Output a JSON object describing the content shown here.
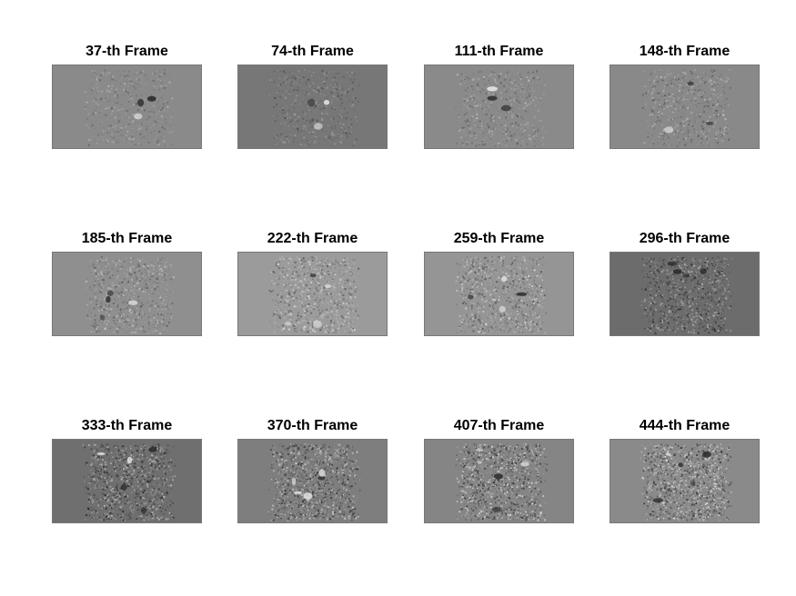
{
  "figure": {
    "panels": [
      {
        "title": "37-th Frame",
        "background": "#8a8a8a",
        "activity": 0.25
      },
      {
        "title": "74-th Frame",
        "background": "#777777",
        "activity": 0.3
      },
      {
        "title": "111-th Frame",
        "background": "#8a8a8a",
        "activity": 0.35
      },
      {
        "title": "148-th Frame",
        "background": "#898989",
        "activity": 0.4
      },
      {
        "title": "185-th Frame",
        "background": "#8f8f8f",
        "activity": 0.5
      },
      {
        "title": "222-th Frame",
        "background": "#9b9b9b",
        "activity": 0.6
      },
      {
        "title": "259-th Frame",
        "background": "#959595",
        "activity": 0.65
      },
      {
        "title": "296-th Frame",
        "background": "#6c6c6c",
        "activity": 0.7
      },
      {
        "title": "333-th Frame",
        "background": "#6f6f6f",
        "activity": 0.85
      },
      {
        "title": "370-th Frame",
        "background": "#7e7e7e",
        "activity": 0.9
      },
      {
        "title": "407-th Frame",
        "background": "#858585",
        "activity": 0.95
      },
      {
        "title": "444-th Frame",
        "background": "#8a8a8a",
        "activity": 1.0
      }
    ]
  }
}
